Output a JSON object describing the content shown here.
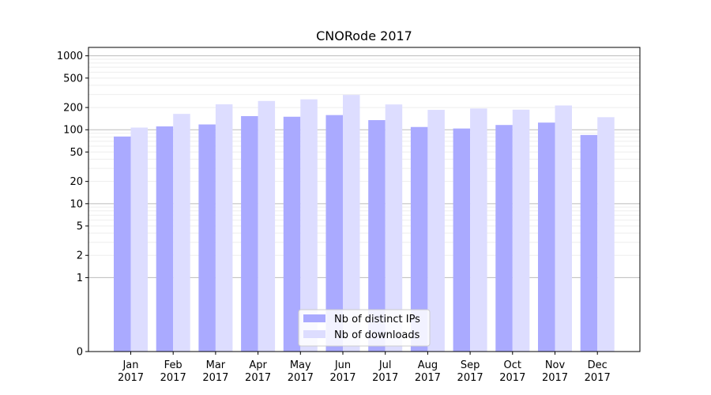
{
  "chart_data": {
    "type": "bar",
    "title": "CNORode 2017",
    "xlabel": "",
    "ylabel": "",
    "y_scale": "symlog",
    "ylim": [
      0,
      1300
    ],
    "y_ticks": [
      0,
      1,
      2,
      5,
      10,
      20,
      50,
      100,
      200,
      500,
      1000
    ],
    "y_tick_labels": [
      "0",
      "1",
      "2",
      "5",
      "10",
      "20",
      "50",
      "100",
      "200",
      "500",
      "1000"
    ],
    "grid": true,
    "legend_position": "bottom-center",
    "categories": [
      [
        "Jan",
        "2017"
      ],
      [
        "Feb",
        "2017"
      ],
      [
        "Mar",
        "2017"
      ],
      [
        "Apr",
        "2017"
      ],
      [
        "May",
        "2017"
      ],
      [
        "Jun",
        "2017"
      ],
      [
        "Jul",
        "2017"
      ],
      [
        "Aug",
        "2017"
      ],
      [
        "Sep",
        "2017"
      ],
      [
        "Oct",
        "2017"
      ],
      [
        "Nov",
        "2017"
      ],
      [
        "Dec",
        "2017"
      ]
    ],
    "series": [
      {
        "name": "Nb of distinct IPs",
        "color": "#aaaaff",
        "values": [
          81,
          111,
          118,
          153,
          150,
          158,
          135,
          109,
          104,
          116,
          125,
          85
        ]
      },
      {
        "name": "Nb of downloads",
        "color": "#ddddff",
        "values": [
          107,
          164,
          221,
          245,
          258,
          296,
          220,
          186,
          194,
          187,
          213,
          148
        ]
      }
    ]
  }
}
